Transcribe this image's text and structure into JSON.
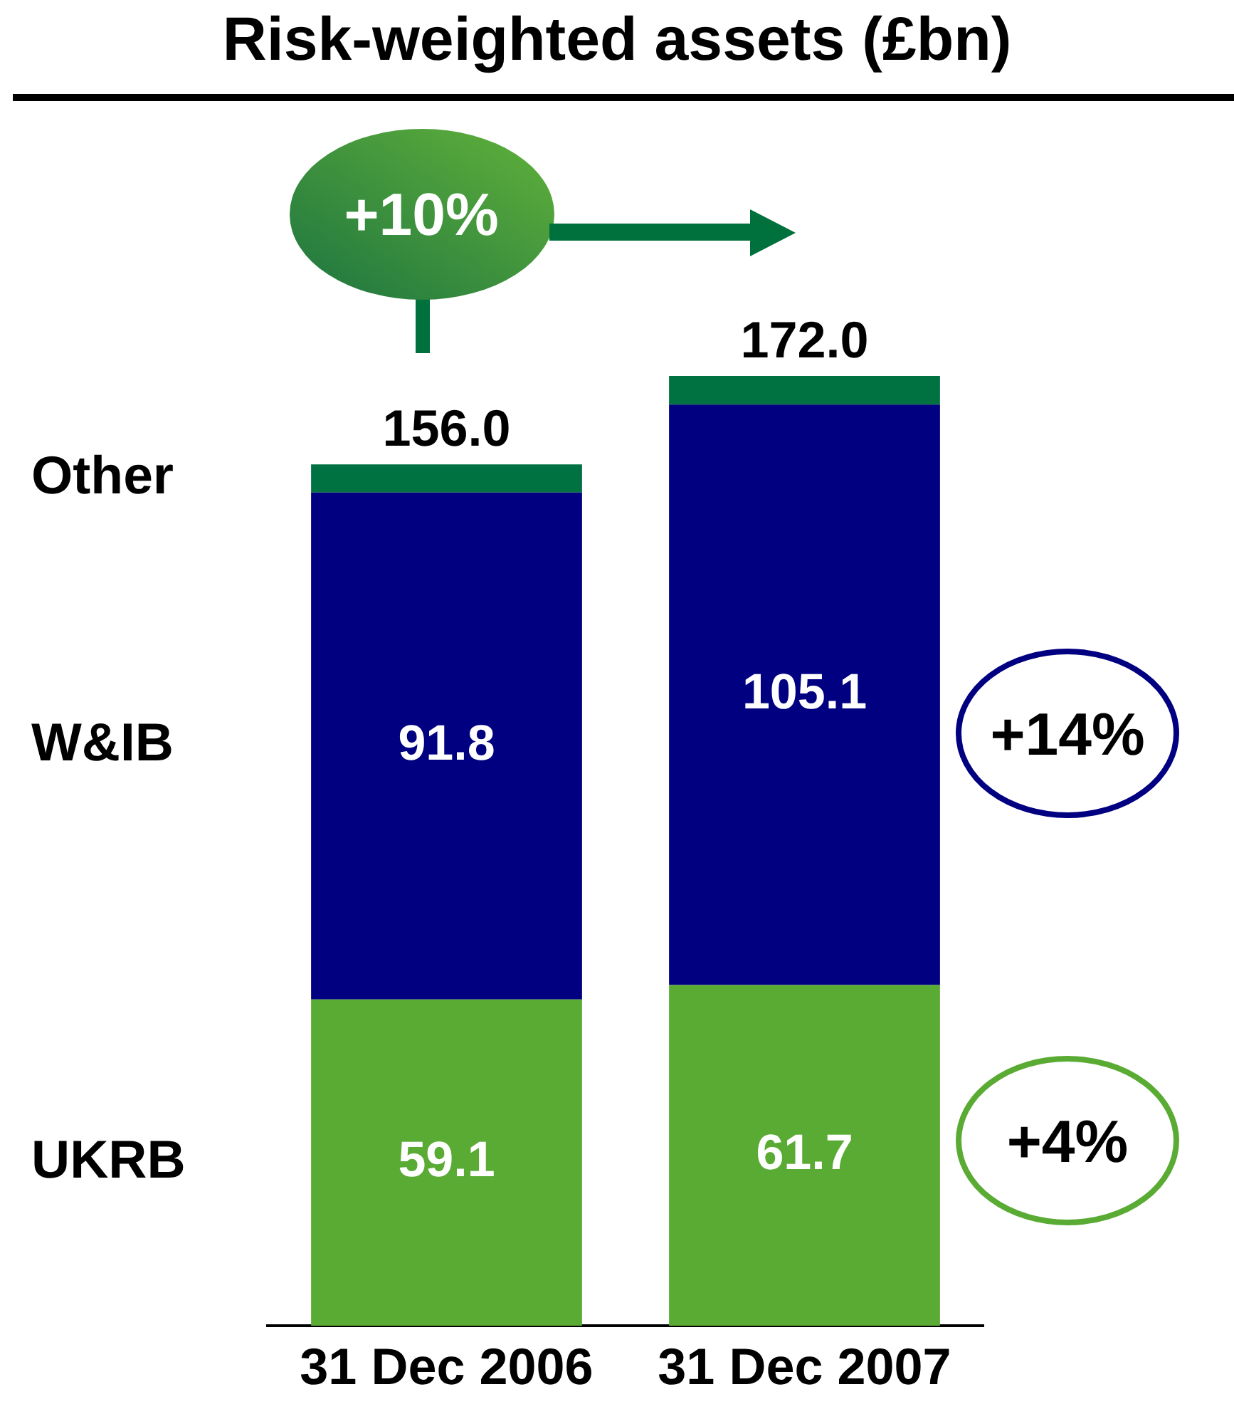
{
  "chart_data": {
    "type": "bar",
    "title": "Risk-weighted assets (£bn)",
    "categories": [
      "31 Dec 2006",
      "31 Dec 2007"
    ],
    "series": [
      {
        "name": "UKRB",
        "color": "#5aab34",
        "values": [
          59.1,
          61.7
        ],
        "value_labels": [
          "59.1",
          "61.7"
        ]
      },
      {
        "name": "W&IB",
        "color": "#000080",
        "values": [
          91.8,
          105.1
        ],
        "value_labels": [
          "91.8",
          "105.1"
        ]
      },
      {
        "name": "Other",
        "color": "#007140",
        "values": [
          5.1,
          5.2
        ],
        "value_labels": [
          null,
          null
        ]
      }
    ],
    "stacked": true,
    "totals": [
      "156.0",
      "172.0"
    ],
    "annotations": [
      "+10%",
      "+14%",
      "+4%"
    ]
  }
}
